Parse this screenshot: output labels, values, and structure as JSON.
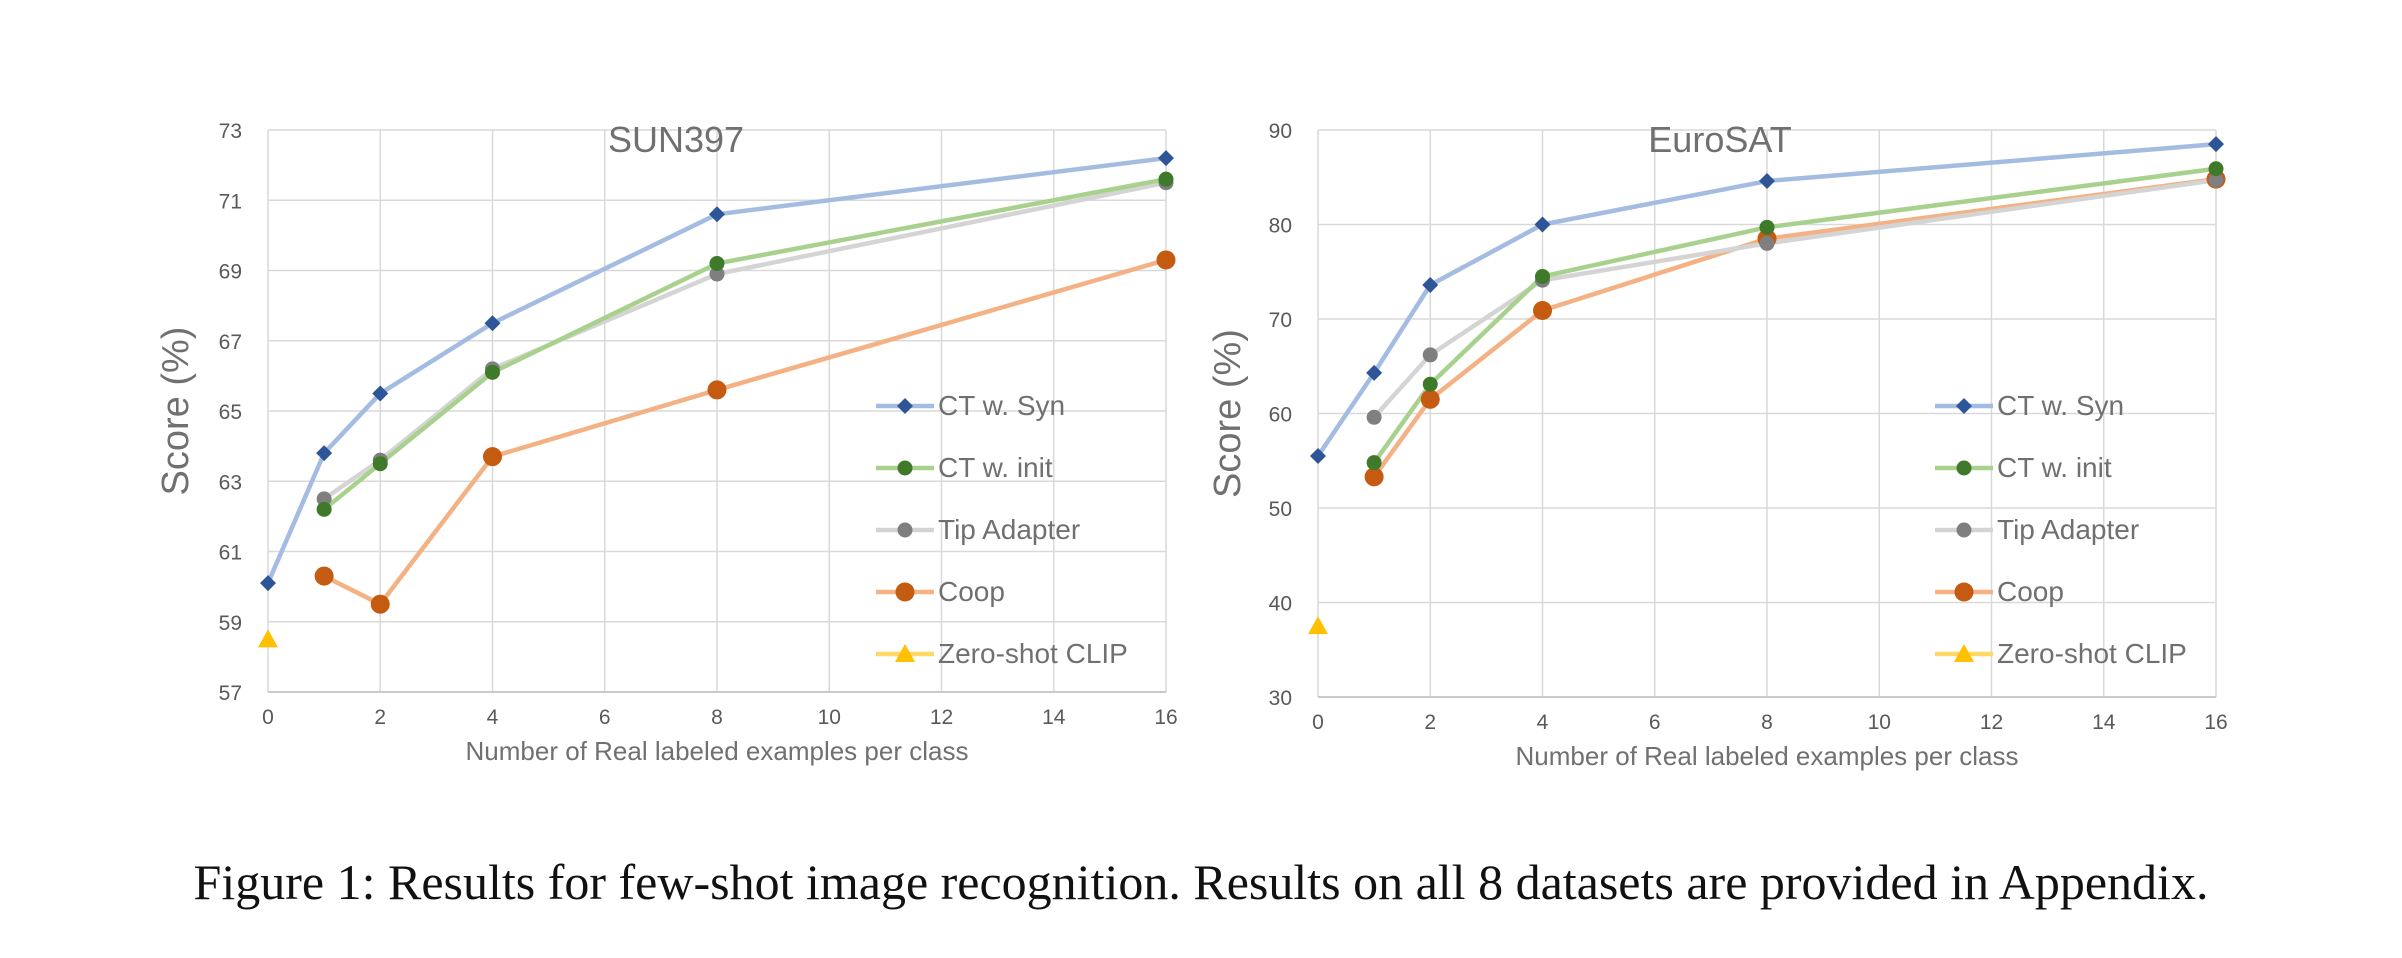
{
  "chart_data": [
    {
      "type": "line",
      "title": "SUN397",
      "xlabel": "Number of Real labeled examples per class",
      "ylabel": "Score (%)",
      "xlim": [
        0,
        16
      ],
      "ylim": [
        57,
        73
      ],
      "xticks": [
        0,
        2,
        4,
        6,
        8,
        10,
        12,
        14,
        16
      ],
      "yticks": [
        57,
        59,
        61,
        63,
        65,
        67,
        69,
        71,
        73
      ],
      "grid": true,
      "legend_position": "right-center",
      "series": [
        {
          "name": "CT w. Syn",
          "line_color": "#A4BBE2",
          "marker_color": "#2E5597",
          "marker": "diamond",
          "x": [
            0,
            1,
            2,
            4,
            8,
            16
          ],
          "y": [
            60.1,
            63.8,
            65.5,
            67.5,
            70.6,
            72.2
          ]
        },
        {
          "name": "CT w. init",
          "line_color": "#A9D18E",
          "marker_color": "#3F7A2A",
          "marker": "circle",
          "x": [
            1,
            2,
            4,
            8,
            16
          ],
          "y": [
            62.2,
            63.5,
            66.1,
            69.2,
            71.6
          ]
        },
        {
          "name": "Tip Adapter",
          "line_color": "#D4D4D4",
          "marker_color": "#7F7F7F",
          "marker": "circle",
          "x": [
            1,
            2,
            4,
            8,
            16
          ],
          "y": [
            62.5,
            63.6,
            66.2,
            68.9,
            71.5
          ]
        },
        {
          "name": "Coop",
          "line_color": "#F4B183",
          "marker_color": "#C55A11",
          "marker": "circle-large",
          "x": [
            1,
            2,
            4,
            8,
            16
          ],
          "y": [
            60.3,
            59.5,
            63.7,
            65.6,
            69.3
          ]
        },
        {
          "name": "Zero-shot CLIP",
          "line_color": "#FFD966",
          "marker_color": "#FFC000",
          "marker": "triangle",
          "x": [
            0
          ],
          "y": [
            58.5
          ]
        }
      ]
    },
    {
      "type": "line",
      "title": "EuroSAT",
      "xlabel": "Number of Real labeled examples per class",
      "ylabel": "Score (%)",
      "xlim": [
        0,
        16
      ],
      "ylim": [
        30,
        90
      ],
      "xticks": [
        0,
        2,
        4,
        6,
        8,
        10,
        12,
        14,
        16
      ],
      "yticks": [
        30,
        40,
        50,
        60,
        70,
        80,
        90
      ],
      "grid": true,
      "legend_position": "right-center",
      "series": [
        {
          "name": "CT w. Syn",
          "line_color": "#A4BBE2",
          "marker_color": "#2E5597",
          "marker": "diamond",
          "x": [
            0,
            1,
            2,
            4,
            8,
            16
          ],
          "y": [
            55.5,
            64.3,
            73.6,
            80.0,
            84.6,
            88.5
          ]
        },
        {
          "name": "CT w. init",
          "line_color": "#A9D18E",
          "marker_color": "#3F7A2A",
          "marker": "circle",
          "x": [
            1,
            2,
            4,
            8,
            16
          ],
          "y": [
            54.8,
            63.1,
            74.5,
            79.7,
            85.9
          ]
        },
        {
          "name": "Tip Adapter",
          "line_color": "#D4D4D4",
          "marker_color": "#7F7F7F",
          "marker": "circle",
          "x": [
            1,
            2,
            4,
            8,
            16
          ],
          "y": [
            59.6,
            66.2,
            74.1,
            78.0,
            84.7
          ]
        },
        {
          "name": "Coop",
          "line_color": "#F4B183",
          "marker_color": "#C55A11",
          "marker": "circle-large",
          "x": [
            1,
            2,
            4,
            8,
            16
          ],
          "y": [
            53.3,
            61.5,
            70.9,
            78.5,
            84.8
          ]
        },
        {
          "name": "Zero-shot CLIP",
          "line_color": "#FFD966",
          "marker_color": "#FFC000",
          "marker": "triangle",
          "x": [
            0
          ],
          "y": [
            37.5
          ]
        }
      ]
    }
  ],
  "caption": "Figure 1: Results for few-shot image recognition. Results on all 8 datasets are provided in Appendix."
}
